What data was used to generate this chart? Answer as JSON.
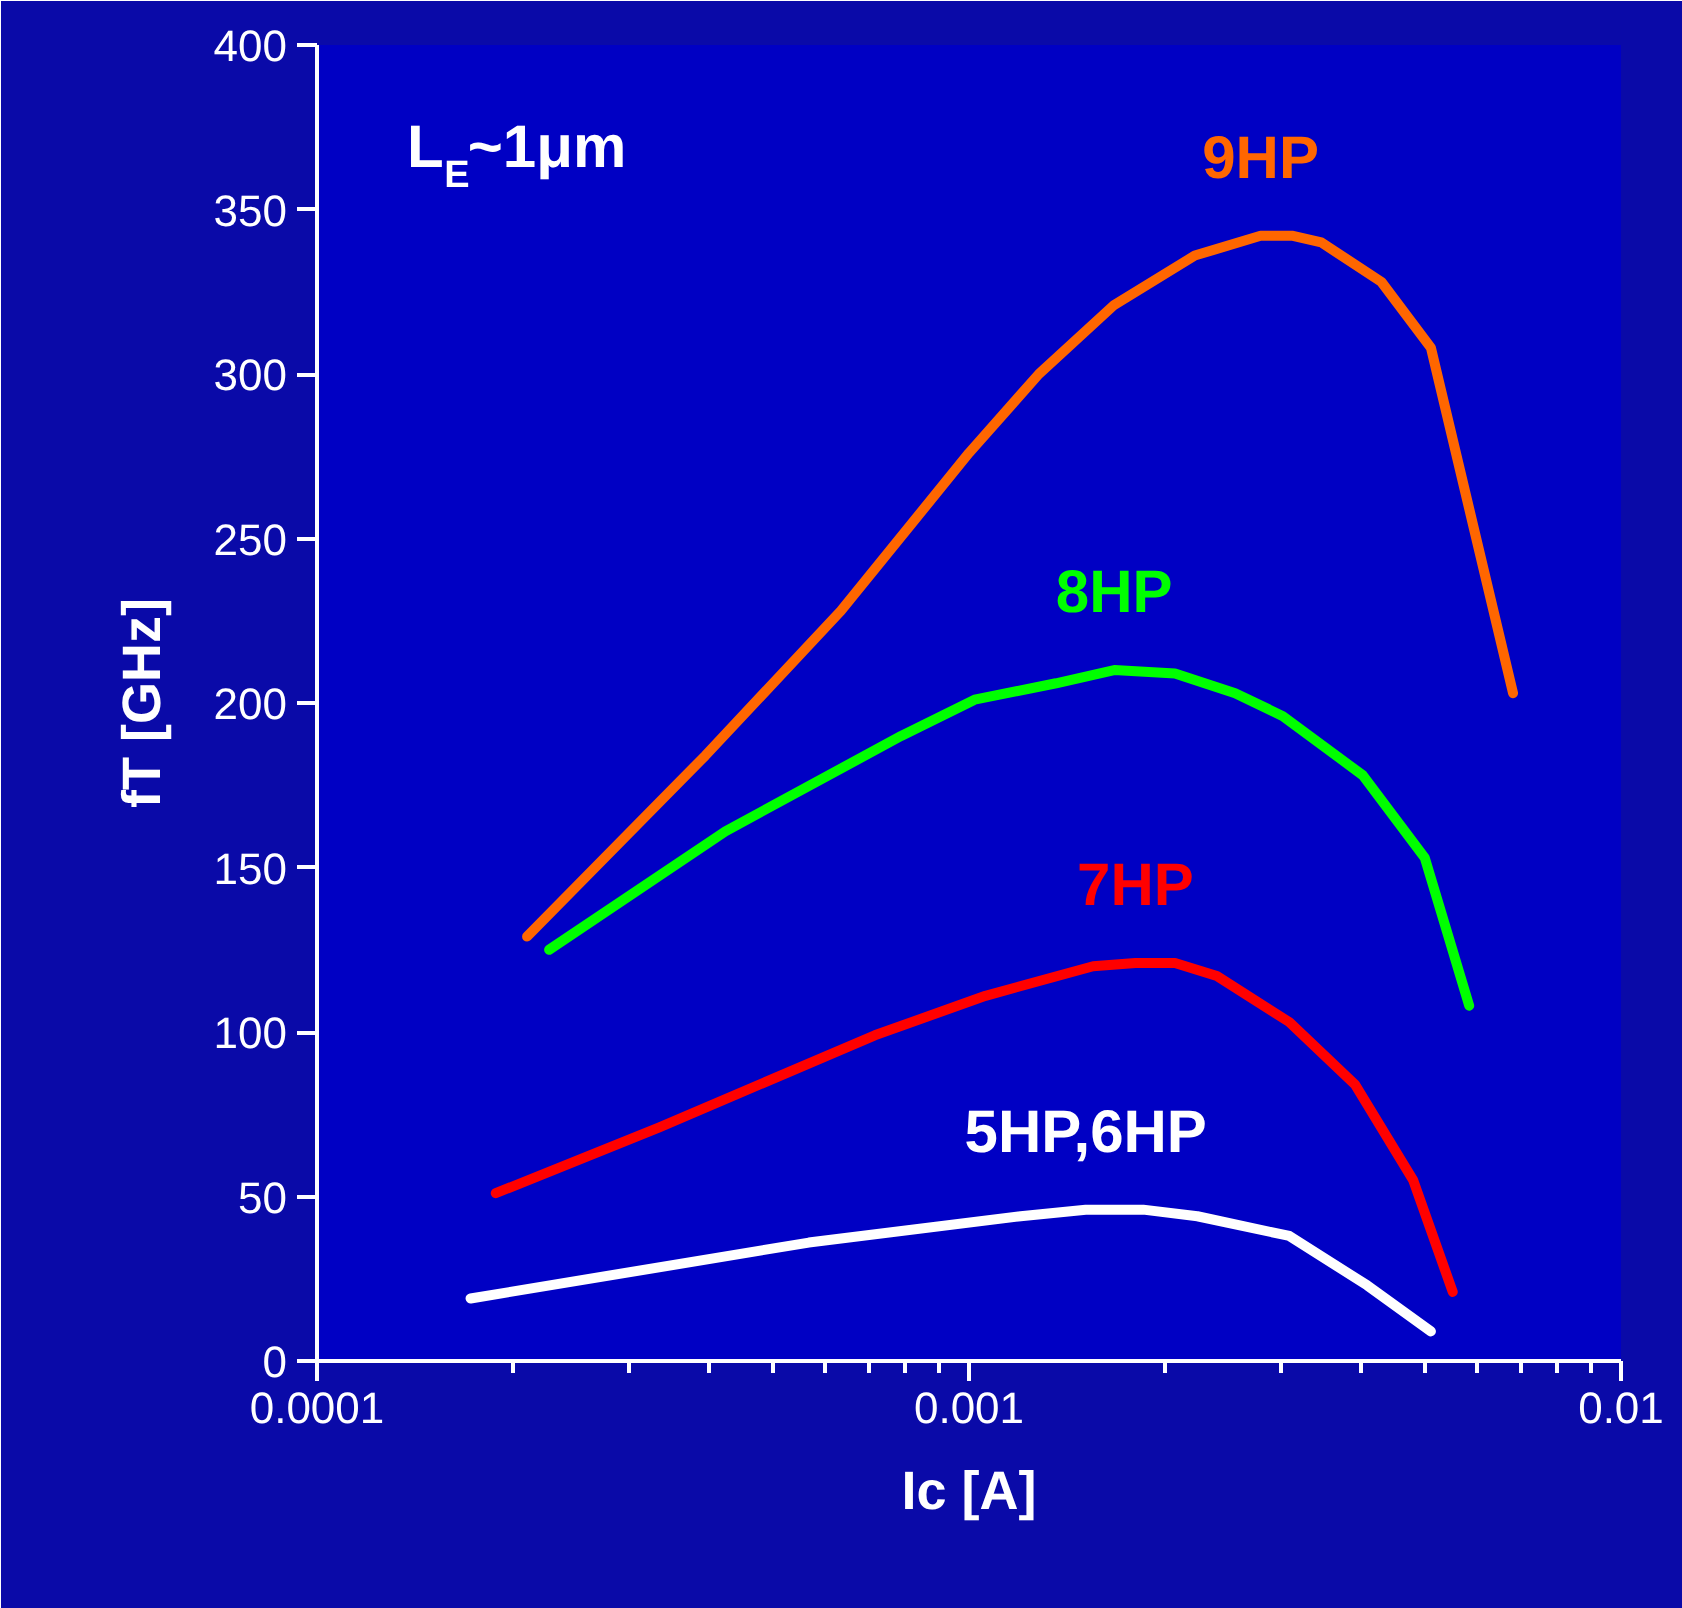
{
  "chart_data": {
    "type": "line",
    "xlabel": "Ic [A]",
    "ylabel": "fT [GHz]",
    "log": "x",
    "grid": false,
    "legend": false,
    "marker": "none",
    "line_style": "solid",
    "xlim": [
      0.0001,
      0.01
    ],
    "xticks": [
      0.0001,
      0.001,
      0.01
    ],
    "ylim": [
      0,
      400
    ],
    "yticks": [
      0,
      50,
      100,
      150,
      200,
      250,
      300,
      350,
      400
    ],
    "annotations": [
      "L$_{E}$~1μm"
    ],
    "series": [
      {
        "name": "9HP",
        "color": "#ff6600",
        "x": [
          0.00021,
          0.000394,
          0.000636,
          0.001,
          0.00128,
          0.00167,
          0.00222,
          0.0028,
          0.00314,
          0.00347,
          0.00429,
          0.00511,
          0.00683
        ],
        "values": [
          129,
          184,
          228,
          276,
          300,
          321,
          336,
          342,
          342,
          340,
          328,
          308,
          203
        ]
      },
      {
        "name": "8HP",
        "color": "#00ff00",
        "x": [
          0.000227,
          0.000423,
          0.000787,
          0.00102,
          0.00136,
          0.00167,
          0.00207,
          0.00256,
          0.00303,
          0.00402,
          0.005,
          0.00585
        ],
        "values": [
          125,
          161,
          190,
          201,
          206,
          210,
          209,
          203,
          196,
          178,
          153,
          108
        ]
      },
      {
        "name": "7HP",
        "color": "#ff0000",
        "x": [
          0.000188,
          0.000335,
          0.000717,
          0.00106,
          0.00155,
          0.0018,
          0.00207,
          0.0024,
          0.0031,
          0.00391,
          0.0048,
          0.00552
        ],
        "values": [
          51,
          71,
          99,
          111,
          120,
          121,
          121,
          117,
          103,
          84,
          55,
          21
        ]
      },
      {
        "name": "5HP,6HP",
        "color": "#ffffff",
        "x": [
          0.000172,
          0.000568,
          0.0012,
          0.00151,
          0.00185,
          0.00224,
          0.0031,
          0.00408,
          0.00511
        ],
        "values": [
          19,
          36,
          44,
          46,
          46,
          44,
          38,
          23,
          9
        ]
      }
    ]
  }
}
